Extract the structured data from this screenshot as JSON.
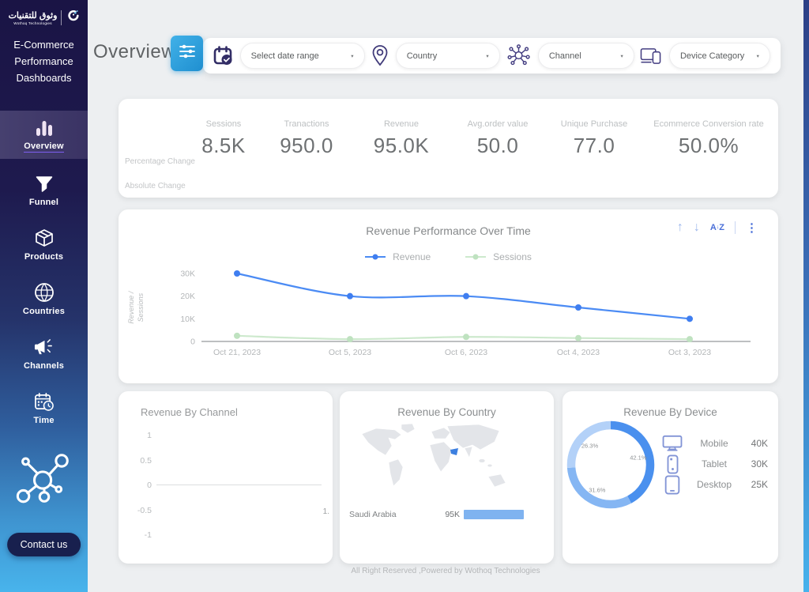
{
  "brand": {
    "logo_arabic": "وثوق للتقنيات",
    "logo_sub": "Wothoq Technologies",
    "title_lines": [
      "E-Commerce",
      "Performance",
      "Dashboards"
    ]
  },
  "sidebar": {
    "items": [
      {
        "label": "Overview",
        "icon": "bar-chart-icon",
        "active": true
      },
      {
        "label": "Funnel",
        "icon": "funnel-icon",
        "active": false
      },
      {
        "label": "Products",
        "icon": "package-icon",
        "active": false
      },
      {
        "label": "Countries",
        "icon": "globe-icon",
        "active": false
      },
      {
        "label": "Channels",
        "icon": "megaphone-icon",
        "active": false
      },
      {
        "label": "Time",
        "icon": "calendar-clock-icon",
        "active": false
      }
    ],
    "molecule_icon": "network-molecule-icon",
    "contact_label": "Contact us"
  },
  "header": {
    "page_title": "Overview",
    "filter_button_icon": "sliders-icon",
    "filters": [
      {
        "name": "date-range",
        "icon": "calendar-check-icon",
        "placeholder": "Select date range"
      },
      {
        "name": "country",
        "icon": "location-pin-icon",
        "placeholder": "Country"
      },
      {
        "name": "channel",
        "icon": "network-hub-icon",
        "placeholder": "Channel"
      },
      {
        "name": "device-category",
        "icon": "devices-icon",
        "placeholder": "Device Category"
      }
    ]
  },
  "kpis": {
    "row_labels": [
      "Percentage Change",
      "Absolute Change"
    ],
    "metrics": [
      {
        "label": "Sessions",
        "value": "8.5K"
      },
      {
        "label": "Tranactions",
        "value": "950.0"
      },
      {
        "label": "Revenue",
        "value": "95.0K"
      },
      {
        "label": "Avg.order value",
        "value": "50.0"
      },
      {
        "label": "Unique Purchase",
        "value": "77.0"
      },
      {
        "label": "Ecommerce Conversion rate",
        "value": "50.0%"
      }
    ]
  },
  "toolbar": {
    "items": [
      {
        "icon": "arrow-up-icon"
      },
      {
        "icon": "arrow-down-icon"
      },
      {
        "icon": "sort-az-icon"
      },
      {
        "icon": "kebab-menu-icon"
      }
    ]
  },
  "chart_data": [
    {
      "type": "line",
      "title": "Revenue Performance Over Time",
      "x": [
        "Oct 21, 2023",
        "Oct 5, 2023",
        "Oct 6, 2023",
        "Oct 4, 2023",
        "Oct 3, 2023"
      ],
      "ylabel": "Revenue / Sessions",
      "yticks": [
        {
          "label": "0",
          "value": 0
        },
        {
          "label": "10K",
          "value": 10000
        },
        {
          "label": "20K",
          "value": 20000
        },
        {
          "label": "30K",
          "value": 30000
        }
      ],
      "ylim": [
        0,
        30000
      ],
      "grid": false,
      "legend_position": "top",
      "series": [
        {
          "name": "Revenue",
          "color": "#4b8bf4",
          "dot_color": "#3f7ef0",
          "values": [
            30000,
            20000,
            20000,
            15000,
            10000
          ]
        },
        {
          "name": "Sessions",
          "color": "#cde9cd",
          "dot_color": "#bfe2c0",
          "values": [
            2500,
            1000,
            2000,
            1500,
            1000
          ]
        }
      ]
    },
    {
      "type": "bar",
      "title": "Revenue By Channel",
      "yticks": [
        "1",
        "0.5",
        "0",
        "-0.5",
        "-1"
      ],
      "categories": [],
      "values": [],
      "x_edge_label": "1.",
      "ylim": [
        -1,
        1
      ]
    },
    {
      "type": "map-bar",
      "title": "Revenue By Country",
      "highlight_country": "Saudi Arabia",
      "highlight_color": "#3c7fe0",
      "max_value": 95000,
      "rows": [
        {
          "country": "Saudi Arabia",
          "value_label": "95K",
          "value": 95000,
          "bar_color": "#7fb3f0"
        }
      ]
    },
    {
      "type": "donut",
      "title": "Revenue By Device",
      "slices": [
        {
          "label": "Mobile",
          "pct": 42.1,
          "value_label": "40K",
          "value": 40000,
          "color": "#4a90ee",
          "legend_icon": "monitor-icon"
        },
        {
          "label": "Tablet",
          "pct": 31.6,
          "value_label": "30K",
          "value": 30000,
          "color": "#85b6f3",
          "legend_icon": "smartphone-icon"
        },
        {
          "label": "Desktop",
          "pct": 26.3,
          "value_label": "25K",
          "value": 25000,
          "color": "#b3d1f8",
          "legend_icon": "tablet-icon"
        }
      ]
    }
  ],
  "footer": {
    "text": "All Right Reserved ,Powered by Wothoq Technologies"
  }
}
